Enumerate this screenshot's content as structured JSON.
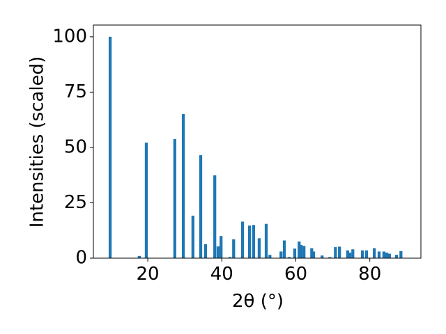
{
  "chart_data": {
    "type": "bar",
    "x_label": "2θ (°)",
    "y_label": "Intensities (scaled)",
    "color": "#1f77b4",
    "x": [
      9.83,
      17.7,
      19.6,
      27.3,
      29.6,
      32.2,
      34.3,
      35.6,
      38.1,
      39.0,
      39.8,
      42.2,
      43.2,
      45.6,
      47.5,
      48.6,
      50.1,
      52.0,
      53.0,
      56.0,
      56.9,
      58.2,
      59.7,
      60.9,
      61.4,
      62.2,
      64.3,
      64.8,
      67.1,
      69.2,
      70.7,
      71.8,
      74.0,
      74.6,
      75.4,
      78.0,
      79.1,
      81.2,
      82.5,
      83.8,
      84.6,
      85.3,
      87.2,
      88.4
    ],
    "values": [
      100,
      1,
      52.2,
      53.8,
      65.1,
      19.2,
      46.5,
      6.3,
      37.4,
      5.3,
      10,
      0.5,
      8.5,
      16.5,
      14.7,
      15,
      9,
      15.5,
      1.5,
      3,
      8,
      0.5,
      4.3,
      7.5,
      6,
      5.5,
      4.5,
      3,
      1.2,
      0.5,
      5,
      5.2,
      3.5,
      2.5,
      4,
      3.5,
      3.5,
      4.5,
      3,
      3,
      2.5,
      2,
      1.5,
      3.2
    ],
    "xlim": [
      5.3,
      93.8
    ],
    "ylim": [
      0,
      105.3
    ],
    "xticks": [
      20,
      40,
      60,
      80
    ],
    "yticks": [
      0,
      25,
      50,
      75,
      100
    ]
  }
}
